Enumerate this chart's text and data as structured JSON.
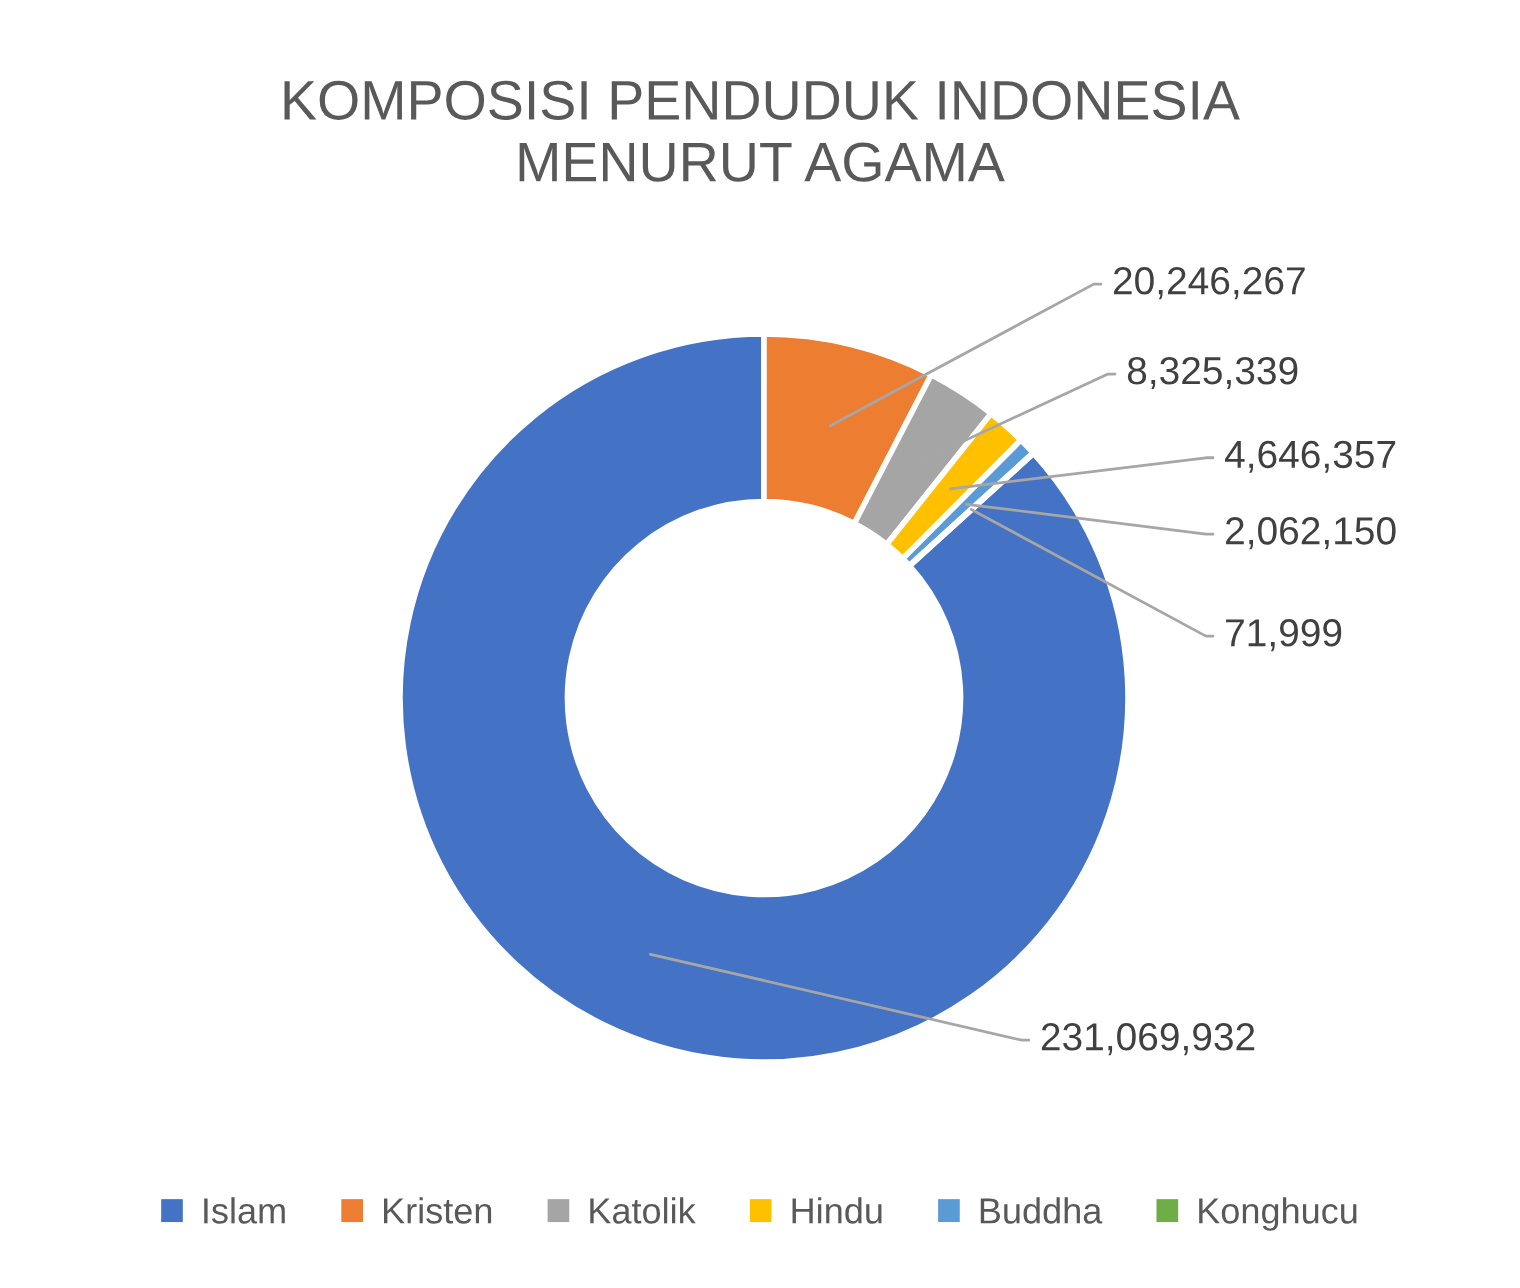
{
  "chart_data": {
    "type": "donut",
    "title": "KOMPOSISI PENDUDUK INDONESIA\nMENURUT AGAMA",
    "categories": [
      "Islam",
      "Kristen",
      "Katolik",
      "Hindu",
      "Buddha",
      "Konghucu"
    ],
    "values": [
      231069932,
      20246267,
      8325339,
      4646357,
      2062150,
      71999
    ],
    "colors": [
      "#4472c4",
      "#ed7d31",
      "#a5a5a5",
      "#ffc000",
      "#5b9bd5",
      "#70ad47"
    ],
    "value_labels": [
      "231,069,932",
      "20,246,267",
      "8,325,339",
      "4,646,357",
      "2,062,150",
      "71,999"
    ],
    "legend": "bottom"
  }
}
